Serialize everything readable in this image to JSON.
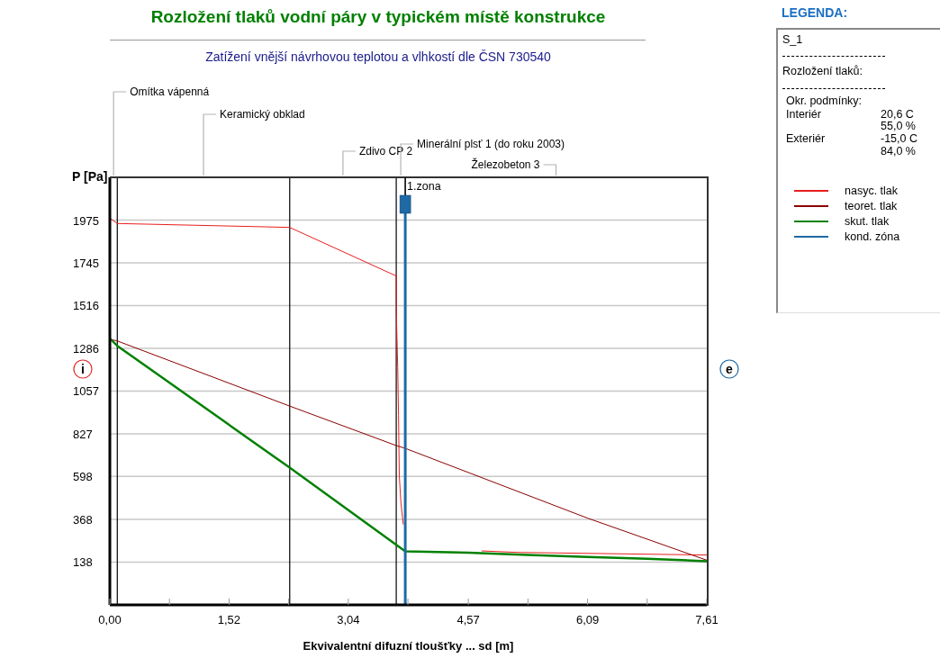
{
  "chart_data": {
    "type": "line",
    "title": "Rozložení tlaků vodní páry v typickém místě konstrukce",
    "subtitle": "Zatížení vnější návrhovou teplotou a vlhkostí dle ČSN 730540",
    "xlabel": "Ekvivalentní difuzní tloušťky ... sd [m]",
    "ylabel": "P [Pa]",
    "legend_title": "LEGENDA:",
    "legend": "right",
    "grid": "y",
    "marker": "none",
    "line_style": "solid",
    "xlim": [
      0,
      7.61
    ],
    "ylim": [
      -92,
      2205
    ],
    "xticks": [
      {
        "value": 0,
        "label": "0,00"
      },
      {
        "value": 0.76,
        "label": null
      },
      {
        "value": 1.52,
        "label": "1,52"
      },
      {
        "value": 2.28,
        "label": null
      },
      {
        "value": 3.04,
        "label": "3,04"
      },
      {
        "value": 3.8,
        "label": null
      },
      {
        "value": 4.57,
        "label": "4,57"
      },
      {
        "value": 5.33,
        "label": null
      },
      {
        "value": 6.09,
        "label": "6,09"
      },
      {
        "value": 6.85,
        "label": null
      },
      {
        "value": 7.61,
        "label": "7,61"
      }
    ],
    "yticks": [
      138,
      368,
      598,
      827,
      1057,
      1286,
      1516,
      1745,
      1975
    ],
    "series": [
      {
        "name": "nasyc. tlak",
        "color": "#e81e1e",
        "x": [
          0,
          0.095,
          2.293,
          3.651,
          3.652,
          3.67,
          3.68,
          3.69,
          3.71,
          3.74,
          3.766,
          4.74,
          5.2,
          7.61
        ],
        "values": [
          1986,
          1957,
          1936,
          1675,
          1484,
          1182,
          927,
          604,
          460,
          340,
          null,
          198,
          190,
          176
        ]
      },
      {
        "name": "teoret. tlak",
        "color": "#8b0000",
        "x": [
          0,
          0.095,
          2.293,
          3.651,
          3.766,
          6.09,
          6.865,
          7.61
        ],
        "values": [
          1335,
          1326,
          976,
          764,
          749,
          374,
          259,
          148
        ]
      },
      {
        "name": "skut. tlak",
        "color": "#008000",
        "x": [
          0,
          0.095,
          2.293,
          3.766,
          4.57,
          5.33,
          6.09,
          6.85,
          7.61
        ],
        "values": [
          1339,
          1300,
          645,
          196,
          188,
          176,
          166,
          156,
          143
        ]
      },
      {
        "name": "kond. zóna",
        "color": "#1f6aa5",
        "x": [
          3.766,
          3.766
        ],
        "values": [
          -92,
          2060
        ],
        "marker": "square"
      }
    ],
    "ref_lines": [
      {
        "axis": "x",
        "value": 0.095,
        "color": "#000000"
      },
      {
        "axis": "x",
        "value": 2.293,
        "color": "#000000"
      },
      {
        "axis": "x",
        "value": 3.651,
        "color": "#000000"
      },
      {
        "axis": "x",
        "value": 3.766,
        "color": "#000000"
      }
    ],
    "annotations": [
      "Omítka vápenná",
      "Keramický obklad",
      "Zdivo CP 2",
      "Minerální plsť 1 (do roku 2003)",
      "Železobeton 3",
      "i",
      "e",
      "1.zona",
      "S_1",
      "Rozložení tlaků:",
      "Okr. podmínky:",
      "Interiér",
      "20,6 C",
      "55,0 %",
      "Exteriér",
      "-15,0 C",
      "84,0 %"
    ]
  }
}
